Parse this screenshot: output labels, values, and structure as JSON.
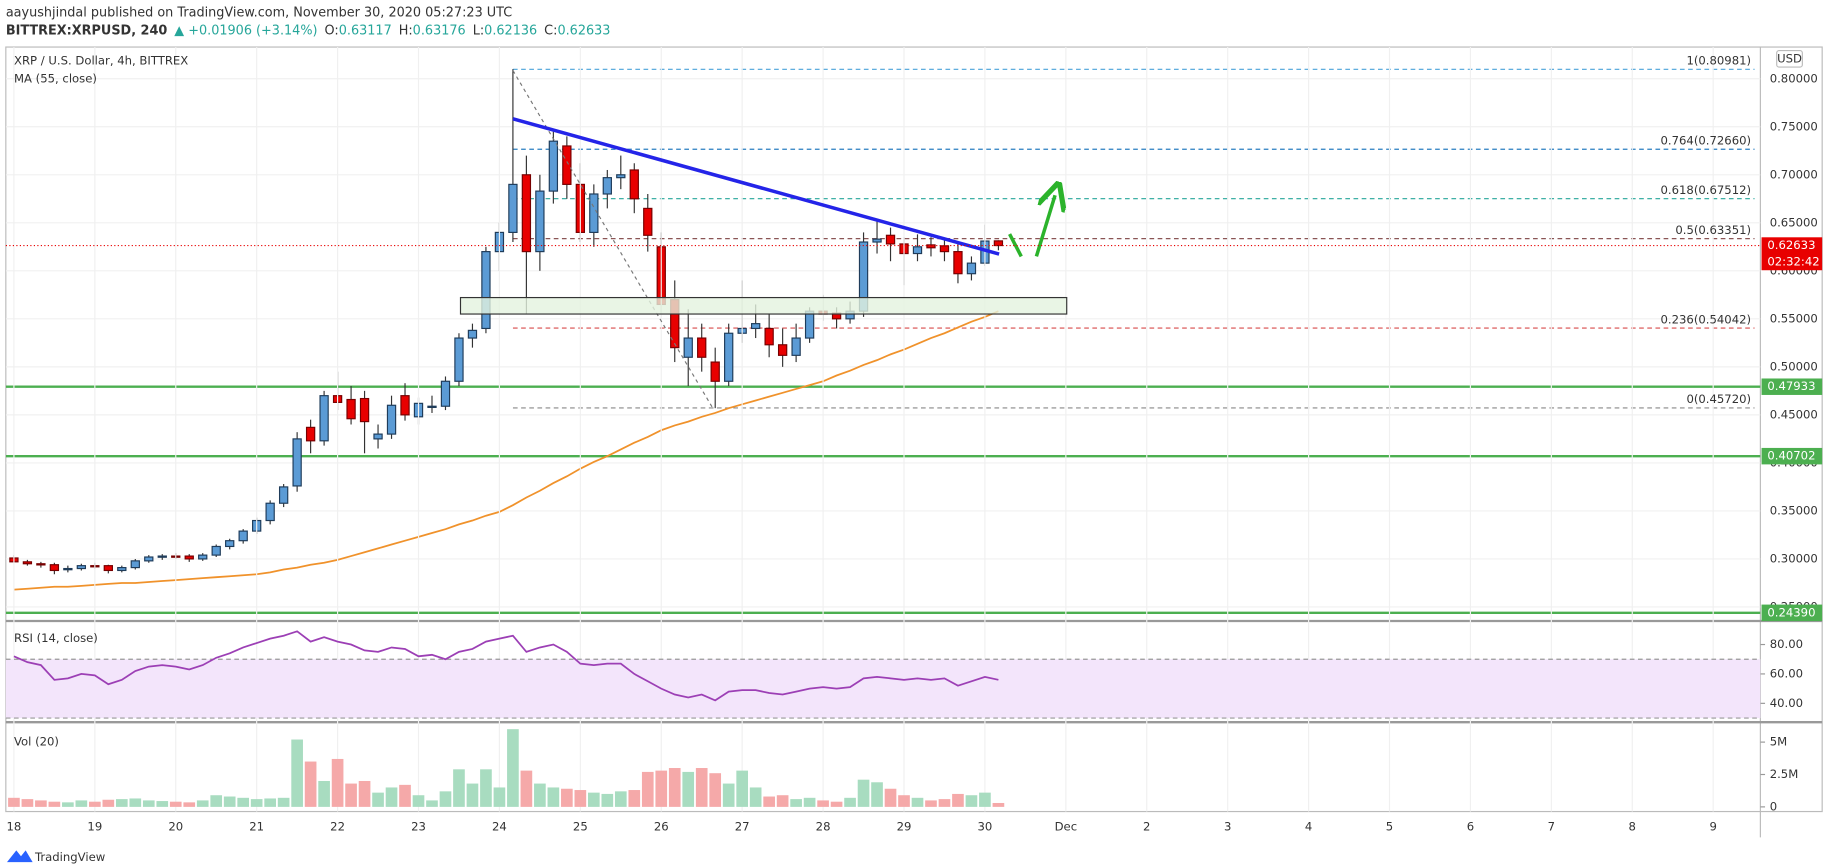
{
  "header": {
    "publisher": "aayushjindal published on TradingView.com, November 30, 2020 05:27:23 UTC",
    "symbol": "BITTREX:XRPUSD, 240",
    "change": "▲ +0.01906 (+3.14%)",
    "o": "O:",
    "h": "H:",
    "l": "L:",
    "c": "C:",
    "brand": "TradingView",
    "currency": "USD",
    "countdown": "02:32:42"
  },
  "chart_data": {
    "type": "candlestick",
    "title": "XRP / U.S. Dollar, 4h, BITTREX",
    "ma_label": "MA (55, close)",
    "rsi_label": "RSI (14, close)",
    "vol_label": "Vol (20)",
    "up_color": "#5b9bd5",
    "down_color": "#e80000",
    "vol_up_color": "#a8dcc0",
    "vol_down_color": "#f5a9a9",
    "ma_color": "#f0922b",
    "rsi_color": "#9c3fb5",
    "grid": true,
    "xlim": [
      -2.4,
      518
    ],
    "xticks": [
      {
        "value": 0,
        "label": "18"
      },
      {
        "value": 24,
        "label": "19"
      },
      {
        "value": 48,
        "label": "20"
      },
      {
        "value": 72,
        "label": "21"
      },
      {
        "value": 96,
        "label": "22"
      },
      {
        "value": 120,
        "label": "23"
      },
      {
        "value": 144,
        "label": "24"
      },
      {
        "value": 168,
        "label": "25"
      },
      {
        "value": 192,
        "label": "26"
      },
      {
        "value": 216,
        "label": "27"
      },
      {
        "value": 240,
        "label": "28"
      },
      {
        "value": 264,
        "label": "29"
      },
      {
        "value": 288,
        "label": "30"
      },
      {
        "value": 312,
        "label": "Dec"
      },
      {
        "value": 336,
        "label": "2"
      },
      {
        "value": 360,
        "label": "3"
      },
      {
        "value": 384,
        "label": "4"
      },
      {
        "value": 408,
        "label": "5"
      },
      {
        "value": 432,
        "label": "6"
      },
      {
        "value": 456,
        "label": "7"
      },
      {
        "value": 480,
        "label": "8"
      },
      {
        "value": 504,
        "label": "9"
      }
    ],
    "ylim": [
      0.2366,
      0.833
    ],
    "yticks": [
      {
        "value": 0.25,
        "label": "0.25000"
      },
      {
        "value": 0.3,
        "label": "0.30000"
      },
      {
        "value": 0.35,
        "label": "0.35000"
      },
      {
        "value": 0.4,
        "label": "0.40000"
      },
      {
        "value": 0.45,
        "label": "0.45000"
      },
      {
        "value": 0.5,
        "label": "0.50000"
      },
      {
        "value": 0.55,
        "label": "0.55000"
      },
      {
        "value": 0.6,
        "label": "0.60000"
      },
      {
        "value": 0.65,
        "label": "0.65000"
      },
      {
        "value": 0.7,
        "label": "0.70000"
      },
      {
        "value": 0.75,
        "label": "0.75000"
      },
      {
        "value": 0.8,
        "label": "0.80000"
      }
    ],
    "rsi_lim": [
      28.8,
      94.4
    ],
    "rsi_ticks": [
      {
        "value": 80,
        "label": "80.00"
      },
      {
        "value": 60,
        "label": "60.00"
      },
      {
        "value": 40,
        "label": "40.00"
      }
    ],
    "rsi_band": [
      30,
      70
    ],
    "vol_lim": [
      -360000,
      6450000
    ],
    "vol_ticks": [
      {
        "value": 5000000,
        "label": "5M"
      },
      {
        "value": 2500000,
        "label": "2.5M"
      },
      0
    ],
    "levels": [
      0.47933,
      0.40702,
      {
        "value": 0.2439,
        "label": "0.24390"
      }
    ],
    "level_color": "#4caf50",
    "fib": [
      {
        "label": "1(0.80981)",
        "value": 0.80981,
        "color": "#4aa3d9"
      },
      {
        "label": "0.764(0.72660)",
        "value": 0.7266,
        "color": "#2a7fc1"
      },
      {
        "label": "0.618(0.67512)",
        "value": 0.67512,
        "color": "#26a69a"
      },
      {
        "label": "0.5(0.63351)",
        "value": 0.63351,
        "color": "#8a5555"
      },
      {
        "label": "0.236(0.54042)",
        "value": 0.54042,
        "color": "#d84a4a"
      },
      {
        "label": "0(0.45720)",
        "value": 0.4572,
        "color": "#888888"
      }
    ],
    "x": [
      0,
      4,
      8,
      12,
      16,
      20,
      24,
      28,
      32,
      36,
      40,
      44,
      48,
      52,
      56,
      60,
      64,
      68,
      72,
      76,
      80,
      84,
      88,
      92,
      96,
      100,
      104,
      108,
      112,
      116,
      120,
      124,
      128,
      132,
      136,
      140,
      144,
      148,
      152,
      156,
      160,
      164,
      168,
      172,
      176,
      180,
      184,
      188,
      192,
      196,
      200,
      204,
      208,
      212,
      216,
      220,
      224,
      228,
      232,
      236,
      240,
      244,
      248,
      252,
      256,
      260,
      264,
      268,
      272,
      276,
      280,
      284,
      288,
      292
    ],
    "candles": [
      [
        0.301,
        0.304,
        0.297,
        0.297
      ],
      [
        0.297,
        0.299,
        0.293,
        0.295
      ],
      [
        0.295,
        0.297,
        0.291,
        0.294
      ],
      [
        0.294,
        0.296,
        0.284,
        0.288
      ],
      [
        0.289,
        0.293,
        0.286,
        0.29
      ],
      [
        0.29,
        0.295,
        0.288,
        0.293
      ],
      [
        0.293,
        0.296,
        0.29,
        0.292
      ],
      [
        0.293,
        0.294,
        0.285,
        0.288
      ],
      [
        0.288,
        0.293,
        0.286,
        0.291
      ],
      [
        0.291,
        0.3,
        0.289,
        0.298
      ],
      [
        0.298,
        0.304,
        0.296,
        0.302
      ],
      [
        0.302,
        0.305,
        0.299,
        0.303
      ],
      [
        0.303,
        0.306,
        0.3,
        0.302
      ],
      [
        0.303,
        0.305,
        0.297,
        0.3
      ],
      [
        0.3,
        0.306,
        0.298,
        0.304
      ],
      [
        0.304,
        0.315,
        0.302,
        0.313
      ],
      [
        0.313,
        0.321,
        0.31,
        0.319
      ],
      [
        0.319,
        0.331,
        0.316,
        0.329
      ],
      [
        0.329,
        0.343,
        0.326,
        0.34
      ],
      [
        0.34,
        0.361,
        0.336,
        0.358
      ],
      [
        0.358,
        0.378,
        0.354,
        0.375
      ],
      [
        0.376,
        0.432,
        0.37,
        0.425
      ],
      [
        0.437,
        0.445,
        0.41,
        0.423
      ],
      [
        0.423,
        0.475,
        0.418,
        0.47
      ],
      [
        0.47,
        0.495,
        0.455,
        0.463
      ],
      [
        0.466,
        0.48,
        0.44,
        0.446
      ],
      [
        0.467,
        0.475,
        0.41,
        0.443
      ],
      [
        0.425,
        0.44,
        0.415,
        0.43
      ],
      [
        0.43,
        0.47,
        0.425,
        0.46
      ],
      [
        0.47,
        0.483,
        0.444,
        0.45
      ],
      [
        0.448,
        0.468,
        0.44,
        0.462
      ],
      [
        0.458,
        0.47,
        0.452,
        0.459
      ],
      [
        0.459,
        0.49,
        0.455,
        0.485
      ],
      [
        0.485,
        0.535,
        0.48,
        0.53
      ],
      [
        0.53,
        0.545,
        0.52,
        0.538
      ],
      [
        0.54,
        0.625,
        0.535,
        0.62
      ],
      [
        0.62,
        0.65,
        0.6,
        0.64
      ],
      [
        0.64,
        0.81,
        0.63,
        0.69
      ],
      [
        0.7,
        0.72,
        0.555,
        0.62
      ],
      [
        0.62,
        0.7,
        0.6,
        0.683
      ],
      [
        0.683,
        0.745,
        0.67,
        0.735
      ],
      [
        0.73,
        0.74,
        0.675,
        0.69
      ],
      [
        0.69,
        0.712,
        0.63,
        0.64
      ],
      [
        0.64,
        0.69,
        0.625,
        0.68
      ],
      [
        0.68,
        0.705,
        0.665,
        0.697
      ],
      [
        0.697,
        0.72,
        0.685,
        0.7
      ],
      [
        0.705,
        0.712,
        0.66,
        0.675
      ],
      [
        0.665,
        0.68,
        0.62,
        0.637
      ],
      [
        0.625,
        0.64,
        0.555,
        0.565
      ],
      [
        0.57,
        0.59,
        0.505,
        0.52
      ],
      [
        0.51,
        0.56,
        0.48,
        0.53
      ],
      [
        0.53,
        0.545,
        0.495,
        0.51
      ],
      [
        0.505,
        0.52,
        0.457,
        0.485
      ],
      [
        0.485,
        0.545,
        0.48,
        0.535
      ],
      [
        0.535,
        0.59,
        0.525,
        0.54
      ],
      [
        0.54,
        0.565,
        0.53,
        0.545
      ],
      [
        0.54,
        0.555,
        0.51,
        0.523
      ],
      [
        0.523,
        0.54,
        0.5,
        0.512
      ],
      [
        0.512,
        0.545,
        0.505,
        0.53
      ],
      [
        0.53,
        0.562,
        0.525,
        0.558
      ],
      [
        0.558,
        0.575,
        0.548,
        0.555
      ],
      [
        0.556,
        0.562,
        0.54,
        0.55
      ],
      [
        0.55,
        0.568,
        0.545,
        0.558
      ],
      [
        0.558,
        0.64,
        0.552,
        0.63
      ],
      [
        0.63,
        0.652,
        0.618,
        0.633
      ],
      [
        0.637,
        0.645,
        0.61,
        0.628
      ],
      [
        0.628,
        0.635,
        0.585,
        0.618
      ],
      [
        0.618,
        0.638,
        0.61,
        0.625
      ],
      [
        0.627,
        0.635,
        0.615,
        0.624
      ],
      [
        0.626,
        0.632,
        0.61,
        0.62
      ],
      [
        0.62,
        0.628,
        0.587,
        0.597
      ],
      [
        0.597,
        0.615,
        0.59,
        0.608
      ],
      [
        0.608,
        0.648,
        0.605,
        0.631
      ],
      [
        0.63117,
        0.63176,
        0.62136,
        0.62633
      ]
    ],
    "ma": [
      0.268,
      0.269,
      0.27,
      0.271,
      0.271,
      0.272,
      0.273,
      0.274,
      0.275,
      0.275,
      0.276,
      0.277,
      0.278,
      0.279,
      0.28,
      0.281,
      0.282,
      0.283,
      0.284,
      0.286,
      0.289,
      0.291,
      0.294,
      0.296,
      0.299,
      0.303,
      0.307,
      0.311,
      0.315,
      0.319,
      0.323,
      0.327,
      0.331,
      0.336,
      0.34,
      0.345,
      0.349,
      0.356,
      0.364,
      0.371,
      0.379,
      0.386,
      0.394,
      0.401,
      0.407,
      0.414,
      0.421,
      0.427,
      0.434,
      0.439,
      0.443,
      0.448,
      0.452,
      0.457,
      0.461,
      0.465,
      0.469,
      0.473,
      0.477,
      0.481,
      0.485,
      0.491,
      0.496,
      0.502,
      0.507,
      0.513,
      0.518,
      0.524,
      0.53,
      0.535,
      0.541,
      0.547,
      0.552,
      0.558
    ],
    "rsi": [
      72,
      68,
      66,
      56,
      57,
      60,
      59,
      53,
      56,
      62,
      65,
      66,
      65,
      63,
      66,
      71,
      74,
      78,
      81,
      84,
      86,
      89,
      82,
      85,
      82,
      80,
      76,
      75,
      78,
      77,
      72,
      73,
      70,
      75,
      77,
      82,
      84,
      86,
      75,
      78,
      80,
      75,
      67,
      66,
      67,
      67,
      60,
      55,
      50,
      46,
      44,
      46,
      42,
      48,
      49,
      49,
      47,
      46,
      48,
      50,
      51,
      50,
      51,
      57,
      58,
      57,
      56,
      57,
      56,
      57,
      52,
      55,
      58,
      56
    ],
    "volume": [
      700000,
      600000,
      500000,
      400000,
      350000,
      500000,
      400000,
      550000,
      600000,
      650000,
      500000,
      450000,
      400000,
      350000,
      500000,
      900000,
      800000,
      700000,
      600000,
      650000,
      700000,
      5200000,
      3500000,
      2000000,
      3700000,
      1800000,
      2000000,
      1100000,
      1500000,
      1700000,
      900000,
      500000,
      1200000,
      2900000,
      1800000,
      2900000,
      1500000,
      6000000,
      2800000,
      1800000,
      1500000,
      1400000,
      1300000,
      1100000,
      1000000,
      1200000,
      1300000,
      2700000,
      2800000,
      3000000,
      2700000,
      3000000,
      2600000,
      1800000,
      2800000,
      1500000,
      800000,
      900000,
      600000,
      700000,
      500000,
      400000,
      700000,
      2100000,
      1900000,
      1400000,
      900000,
      700000,
      500000,
      600000,
      1000000,
      900000,
      1100000,
      300000
    ]
  }
}
